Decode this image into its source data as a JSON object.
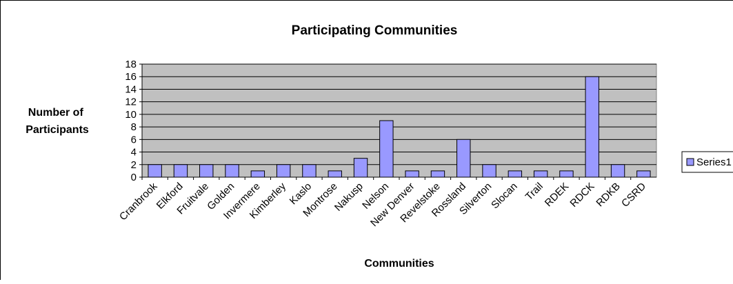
{
  "chart_data": {
    "type": "bar",
    "title": "Participating Communities",
    "xlabel": "Communities",
    "ylabel": [
      "Number of",
      "Participants"
    ],
    "categories": [
      "Cranbrook",
      "Elkford",
      "Fruitvale",
      "Golden",
      "Invermere",
      "Kimberley",
      "Kaslo",
      "Montrose",
      "Nakusp",
      "Nelson",
      "New Denver",
      "Revelstoke",
      "Rossland",
      "Silverton",
      "Slocan",
      "Trail",
      "RDEK",
      "RDCK",
      "RDKB",
      "CSRD"
    ],
    "series": [
      {
        "name": "Series1",
        "values": [
          2,
          2,
          2,
          2,
          1,
          2,
          2,
          1,
          3,
          9,
          1,
          1,
          6,
          2,
          1,
          1,
          1,
          16,
          2,
          1
        ]
      }
    ],
    "ylim": [
      0,
      18
    ],
    "yticks": [
      0,
      2,
      4,
      6,
      8,
      10,
      12,
      14,
      16,
      18
    ],
    "grid": true,
    "legend": "right",
    "colors": {
      "bar_fill": "#9999ff",
      "plot_background": "#c0c0c0",
      "gridline": "#000000"
    }
  }
}
